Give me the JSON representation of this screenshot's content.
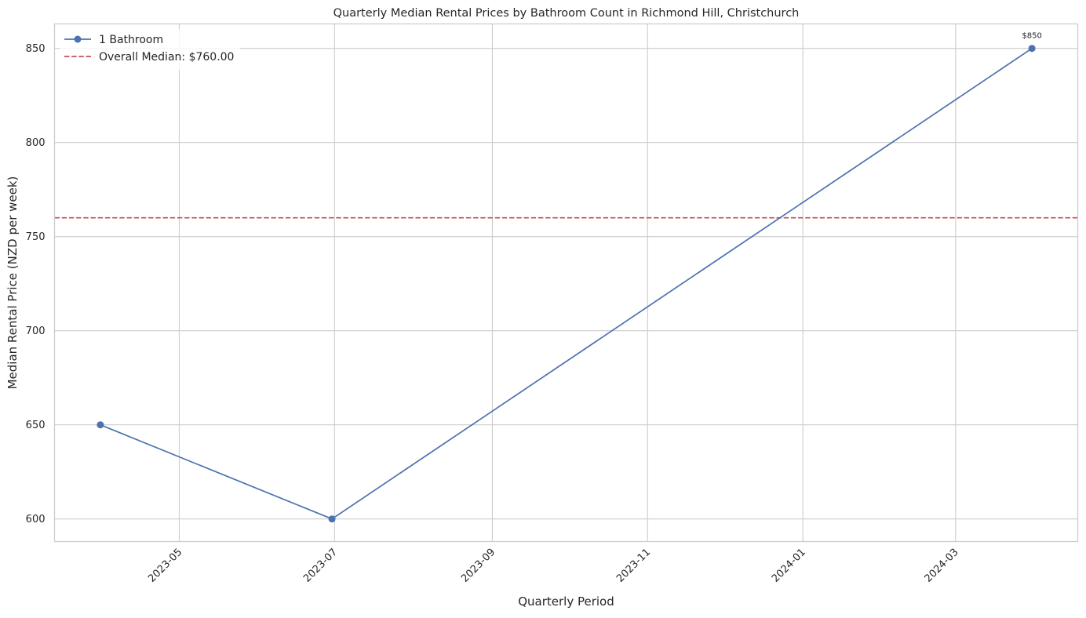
{
  "chart_data": {
    "type": "line",
    "title": "Quarterly Median Rental Prices by Bathroom Count in Richmond Hill, Christchurch",
    "xlabel": "Quarterly Period",
    "ylabel": "Median Rental Price (NZD per week)",
    "x_axis": {
      "type": "date",
      "range": [
        "2023-03-13",
        "2024-04-18"
      ],
      "ticks": [
        "2023-05-01",
        "2023-07-01",
        "2023-09-01",
        "2023-11-01",
        "2024-01-01",
        "2024-03-01"
      ],
      "tick_labels": [
        "2023-05",
        "2023-07",
        "2023-09",
        "2023-11",
        "2024-01",
        "2024-03"
      ]
    },
    "ylim": [
      588,
      863
    ],
    "y_ticks": [
      600,
      650,
      700,
      750,
      800,
      850
    ],
    "grid": true,
    "legend_placement": "top-left",
    "series": [
      {
        "name": "1 Bathroom",
        "color": "#4c72b0",
        "marker": "circle",
        "points": [
          {
            "x": "2023-03-31",
            "y": 650
          },
          {
            "x": "2023-06-30",
            "y": 600
          },
          {
            "x": "2024-03-31",
            "y": 850
          }
        ]
      }
    ],
    "reference_line": {
      "label": "Overall Median: $760.00",
      "y": 760,
      "color": "#c44e52",
      "style": "dashed"
    },
    "annotations": [
      {
        "x": "2024-03-31",
        "y": 850,
        "text": "$850"
      }
    ]
  }
}
